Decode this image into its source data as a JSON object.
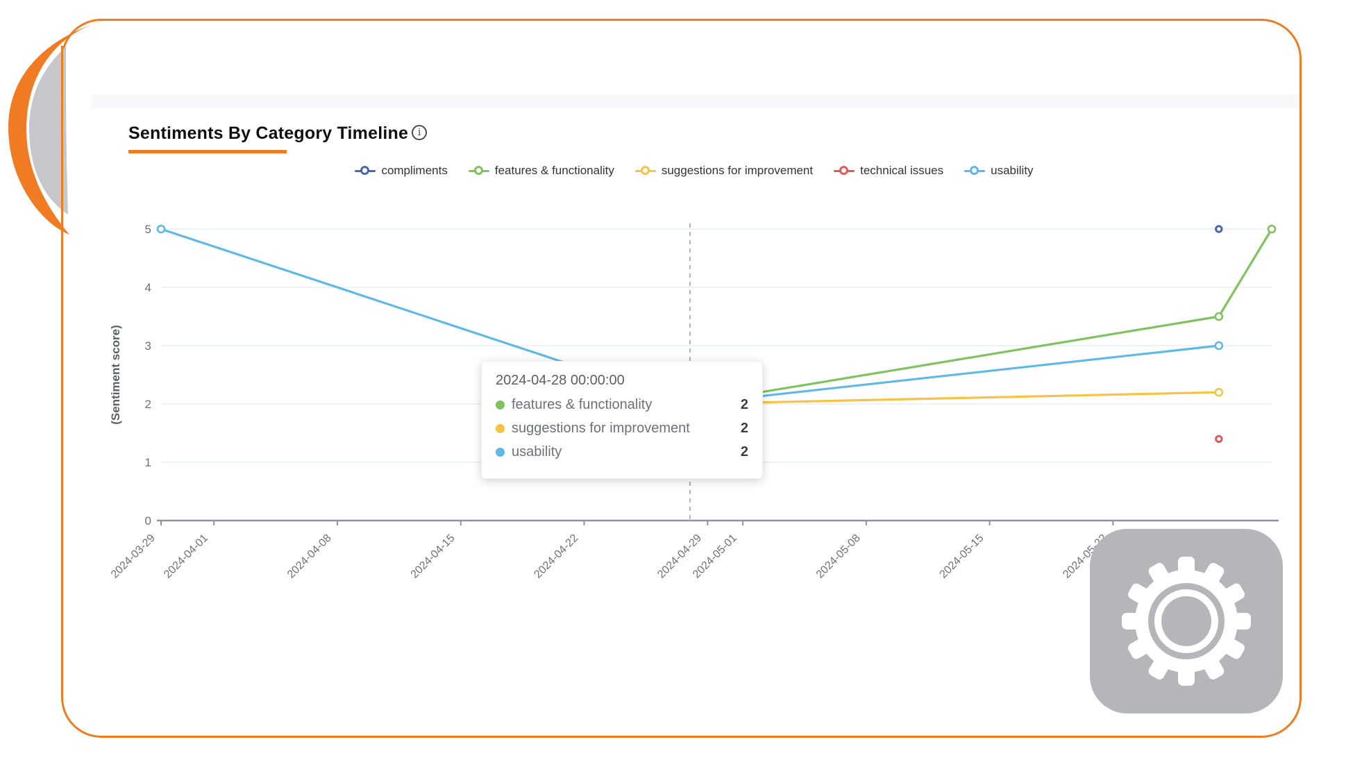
{
  "frame": {
    "accent_color": "#f07b22",
    "decoration_gray": "#c7c7cb",
    "overlay_gray": "#b5b6b9"
  },
  "header": {
    "title": "Sentiments By Category Timeline",
    "info_icon": "i"
  },
  "chart_data": {
    "type": "line",
    "title": "Sentiments By Category Timeline",
    "xlabel": "",
    "ylabel": "(Sentiment score)",
    "ylim": [
      0,
      5
    ],
    "grid": true,
    "legend_position": "top",
    "x_min": "2024-03-29",
    "x_max": "2024-05-31",
    "x_ticks": [
      "2024-03-29",
      "2024-04-01",
      "2024-04-08",
      "2024-04-15",
      "2024-04-22",
      "2024-04-29",
      "2024-05-01",
      "2024-05-08",
      "2024-05-15",
      "2024-05-22"
    ],
    "y_ticks": [
      0,
      1,
      2,
      3,
      4,
      5
    ],
    "axis_pointer_x": "2024-04-28",
    "series": [
      {
        "name": "compliments",
        "color": "#4a67ad",
        "points": [
          {
            "x": "2024-05-28",
            "y": 5
          }
        ]
      },
      {
        "name": "features & functionality",
        "color": "#7fc25f",
        "points": [
          {
            "x": "2024-04-28",
            "y": 2
          },
          {
            "x": "2024-05-28",
            "y": 3.5
          },
          {
            "x": "2024-05-31",
            "y": 5
          }
        ]
      },
      {
        "name": "suggestions for improvement",
        "color": "#f6c344",
        "points": [
          {
            "x": "2024-04-28",
            "y": 2
          },
          {
            "x": "2024-05-28",
            "y": 2.2
          }
        ]
      },
      {
        "name": "technical issues",
        "color": "#e05a5a",
        "points": [
          {
            "x": "2024-05-28",
            "y": 1.4
          }
        ]
      },
      {
        "name": "usability",
        "color": "#5fb8e6",
        "points": [
          {
            "x": "2024-03-29",
            "y": 5
          },
          {
            "x": "2024-04-28",
            "y": 2
          },
          {
            "x": "2024-05-28",
            "y": 3
          }
        ]
      }
    ]
  },
  "tooltip": {
    "title": "2024-04-28 00:00:00",
    "rows": [
      {
        "label": "features & functionality",
        "value": "2",
        "color": "#7fc25f"
      },
      {
        "label": "suggestions for improvement",
        "value": "2",
        "color": "#f6c344"
      },
      {
        "label": "usability",
        "value": "2",
        "color": "#5fb8e6"
      }
    ]
  }
}
